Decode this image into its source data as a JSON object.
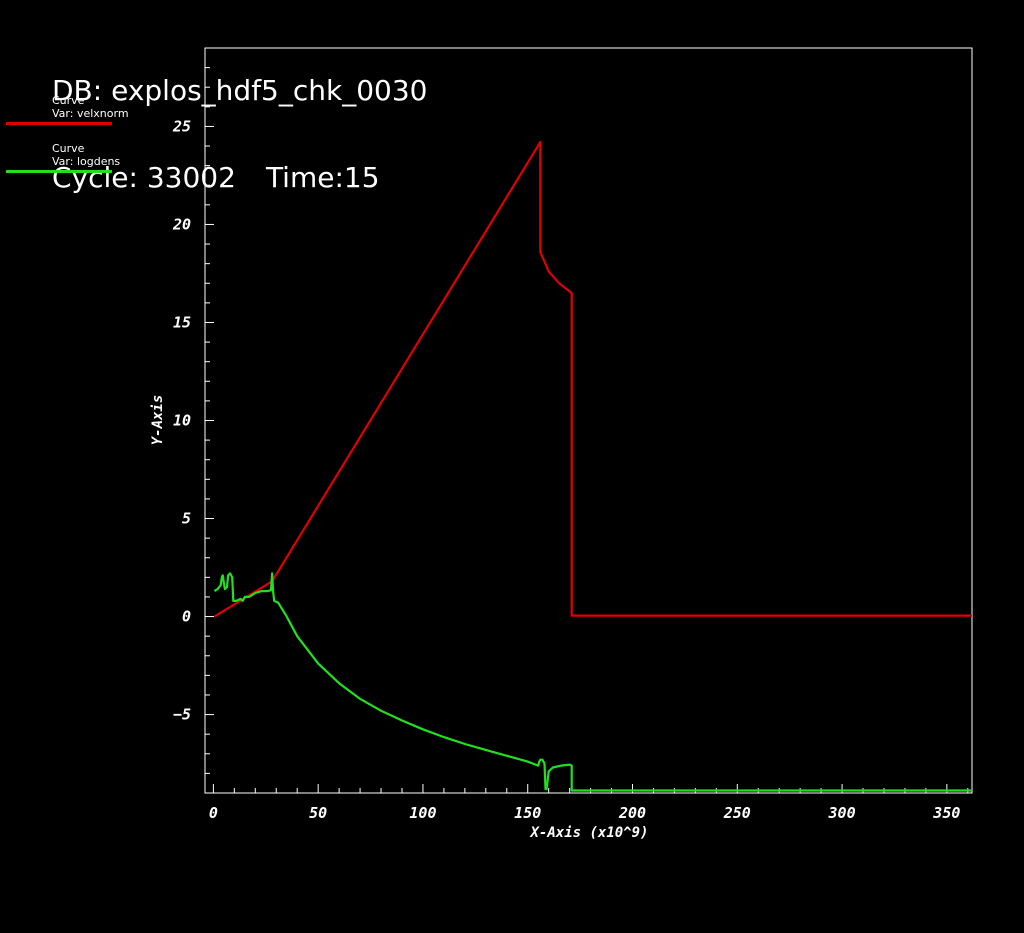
{
  "header": {
    "db_line": "DB: explos_hdf5_chk_0030",
    "cycle_part": "Cycle: 33002",
    "time_part": "Time:15"
  },
  "legend": [
    {
      "title": "Curve",
      "var": "Var: velxnorm",
      "color": "#e00000"
    },
    {
      "title": "Curve",
      "var": "Var: logdens",
      "color": "#20e020"
    }
  ],
  "chart_data": {
    "type": "line",
    "title": "",
    "xlabel": "X-Axis (x10^9)",
    "ylabel": "Y-Axis",
    "xlim": [
      -4,
      362
    ],
    "ylim": [
      -9,
      29
    ],
    "xticks": [
      0,
      50,
      100,
      150,
      200,
      250,
      300,
      350
    ],
    "xtick_labels": [
      "0",
      "50",
      "100",
      "150",
      "200",
      "250",
      "300",
      "350"
    ],
    "yticks": [
      -5,
      0,
      5,
      10,
      15,
      20,
      25
    ],
    "ytick_labels": [
      "−5",
      "0",
      "5",
      "10",
      "15",
      "20",
      "25"
    ],
    "grid": false,
    "legend_position": "top-left",
    "series": [
      {
        "name": "velxnorm",
        "color": "#e00000",
        "points": [
          [
            0.5,
            0.0
          ],
          [
            28,
            1.8
          ],
          [
            156,
            24.2
          ],
          [
            156,
            18.6
          ],
          [
            160,
            17.6
          ],
          [
            165,
            17.0
          ],
          [
            171,
            16.5
          ],
          [
            171,
            0.05
          ],
          [
            200,
            0.05
          ],
          [
            362,
            0.05
          ]
        ]
      },
      {
        "name": "logdens",
        "color": "#20e020",
        "points": [
          [
            0.5,
            1.3
          ],
          [
            2,
            1.4
          ],
          [
            3.5,
            1.6
          ],
          [
            4,
            2.0
          ],
          [
            4.5,
            2.1
          ],
          [
            5,
            1.7
          ],
          [
            5.5,
            1.4
          ],
          [
            6.5,
            1.5
          ],
          [
            7,
            2.1
          ],
          [
            8,
            2.2
          ],
          [
            9,
            2.0
          ],
          [
            9.5,
            0.8
          ],
          [
            11,
            0.8
          ],
          [
            13,
            0.9
          ],
          [
            14,
            0.8
          ],
          [
            15,
            1.0
          ],
          [
            17,
            1.0
          ],
          [
            20,
            1.2
          ],
          [
            23,
            1.3
          ],
          [
            26,
            1.3
          ],
          [
            27.5,
            1.35
          ],
          [
            28,
            2.2
          ],
          [
            28.5,
            1.3
          ],
          [
            29,
            0.8
          ],
          [
            31,
            0.7
          ],
          [
            35,
            0.0
          ],
          [
            40,
            -1.0
          ],
          [
            50,
            -2.4
          ],
          [
            60,
            -3.4
          ],
          [
            70,
            -4.2
          ],
          [
            80,
            -4.8
          ],
          [
            90,
            -5.3
          ],
          [
            100,
            -5.75
          ],
          [
            110,
            -6.15
          ],
          [
            120,
            -6.5
          ],
          [
            130,
            -6.8
          ],
          [
            140,
            -7.1
          ],
          [
            150,
            -7.4
          ],
          [
            155,
            -7.6
          ],
          [
            155.5,
            -7.4
          ],
          [
            156,
            -7.3
          ],
          [
            157,
            -7.3
          ],
          [
            158,
            -7.5
          ],
          [
            158.5,
            -8.8
          ],
          [
            159,
            -8.8
          ],
          [
            160,
            -7.9
          ],
          [
            162,
            -7.7
          ],
          [
            166,
            -7.6
          ],
          [
            170,
            -7.55
          ],
          [
            171,
            -7.6
          ],
          [
            171,
            -8.87
          ],
          [
            200,
            -8.87
          ],
          [
            362,
            -8.87
          ]
        ]
      }
    ]
  }
}
